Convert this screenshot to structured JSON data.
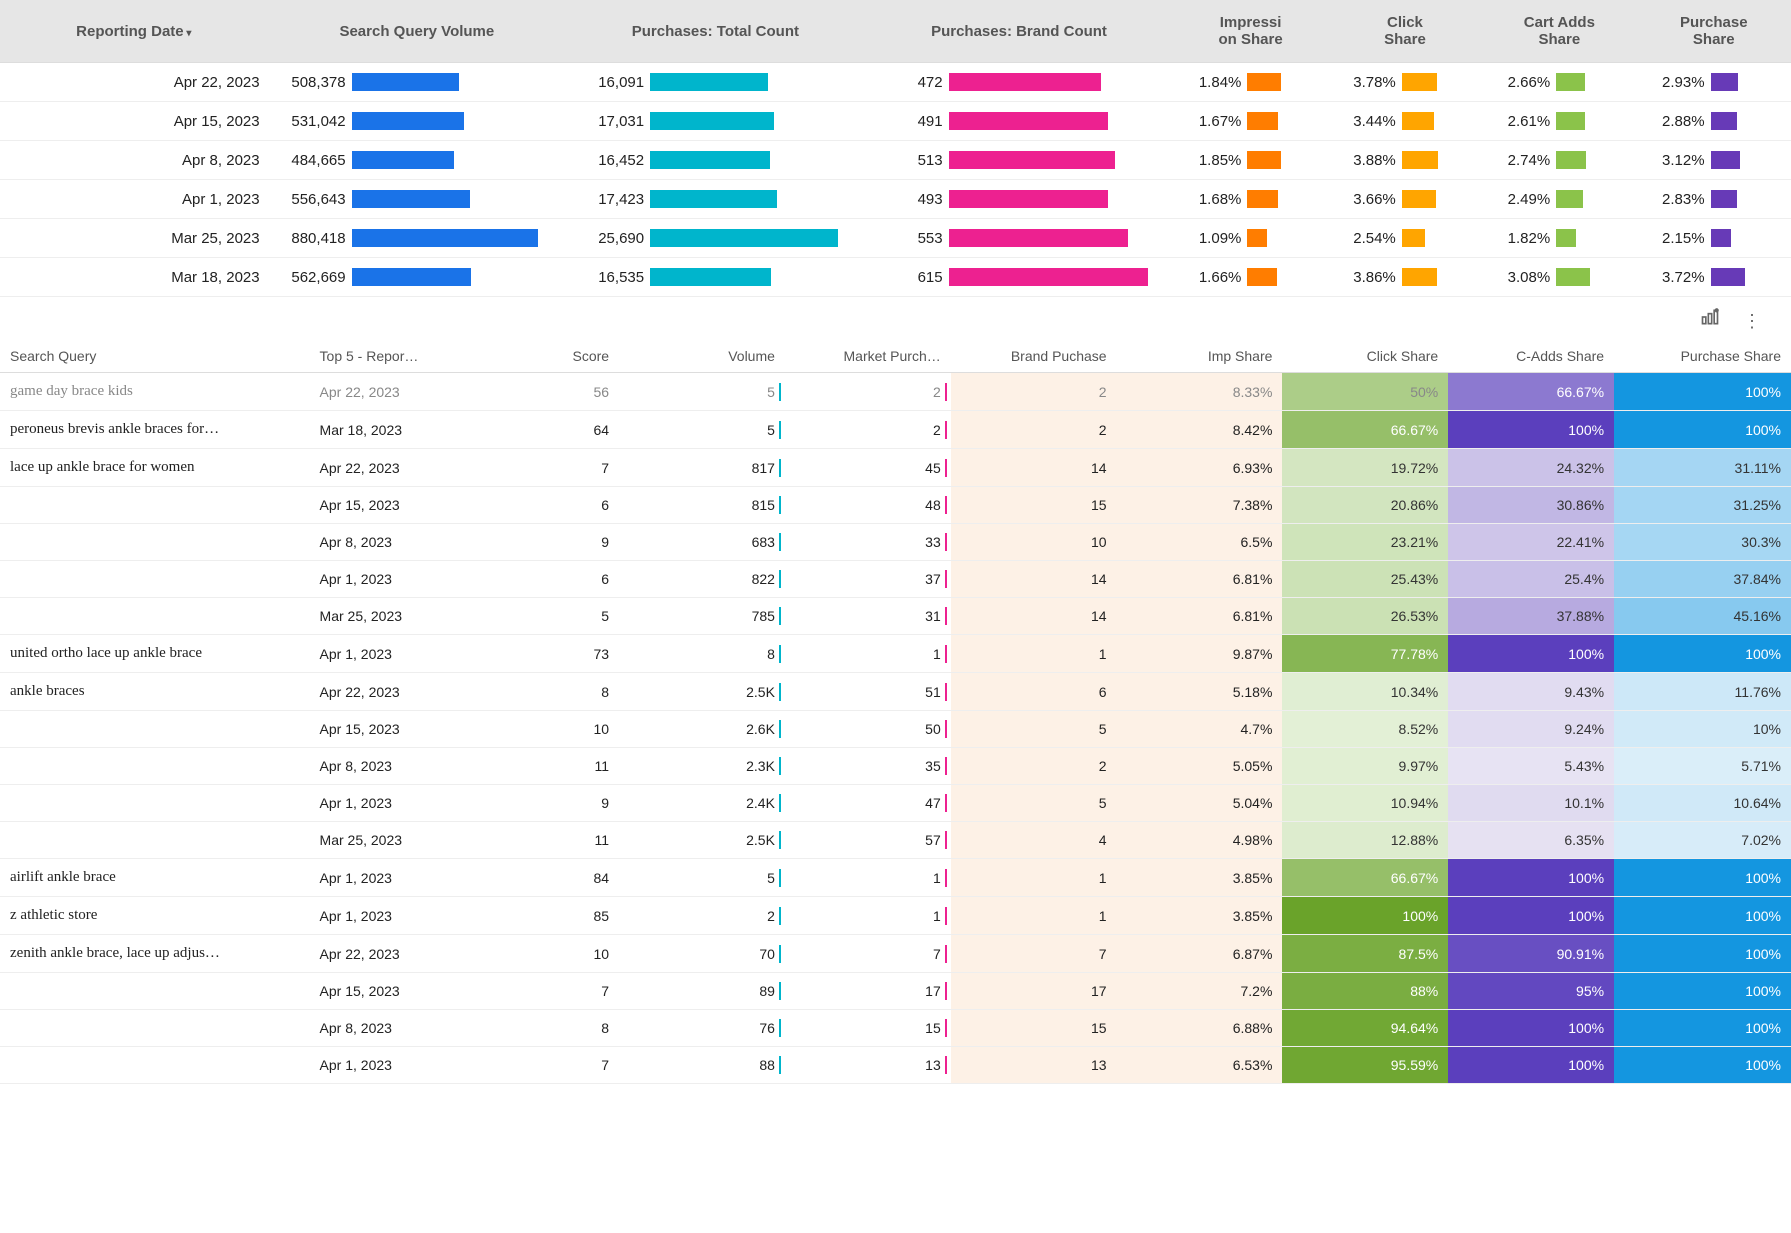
{
  "colors": {
    "sqv": "#1a73e8",
    "ptc": "#00b5cc",
    "pbc": "#ed2190",
    "imp": "#ff7d00",
    "click": "#ffa500",
    "cart": "#8bc34a",
    "purch": "#673ab7",
    "tick_vol": "#00b5cc",
    "tick_mp": "#ed2190",
    "brand_bg": "#fdf1e6",
    "header_bg": "#e6e6e6"
  },
  "topHeaders": {
    "date": "Reporting Date",
    "sqv": "Search Query Volume",
    "ptc": "Purchases: Total Count",
    "pbc": "Purchases: Brand Count",
    "imp": "Impressi\non Share",
    "click": "Click\nShare",
    "cart": "Cart Adds\nShare",
    "purch": "Purchase\nShare"
  },
  "topBar": {
    "sqv_max": 900000,
    "ptc_max": 26000,
    "pbc_max": 650,
    "imp_max": 3.0,
    "click_max": 6.0,
    "cart_max": 5.0,
    "purch_max": 6.0,
    "sqv_w": 190,
    "ptc_w": 190,
    "pbc_w": 210,
    "small_w": 55
  },
  "topRows": [
    {
      "date": "Apr 22, 2023",
      "sqv": 508378,
      "ptc": 16091,
      "pbc": 472,
      "imp": 1.84,
      "click": 3.78,
      "cart": 2.66,
      "purch": 2.93
    },
    {
      "date": "Apr 15, 2023",
      "sqv": 531042,
      "ptc": 17031,
      "pbc": 491,
      "imp": 1.67,
      "click": 3.44,
      "cart": 2.61,
      "purch": 2.88
    },
    {
      "date": "Apr 8, 2023",
      "sqv": 484665,
      "ptc": 16452,
      "pbc": 513,
      "imp": 1.85,
      "click": 3.88,
      "cart": 2.74,
      "purch": 3.12
    },
    {
      "date": "Apr 1, 2023",
      "sqv": 556643,
      "ptc": 17423,
      "pbc": 493,
      "imp": 1.68,
      "click": 3.66,
      "cart": 2.49,
      "purch": 2.83
    },
    {
      "date": "Mar 25, 2023",
      "sqv": 880418,
      "ptc": 25690,
      "pbc": 553,
      "imp": 1.09,
      "click": 2.54,
      "cart": 1.82,
      "purch": 2.15
    },
    {
      "date": "Mar 18, 2023",
      "sqv": 562669,
      "ptc": 16535,
      "pbc": 615,
      "imp": 1.66,
      "click": 3.86,
      "cart": 3.08,
      "purch": 3.72
    }
  ],
  "detailHeaders": {
    "query": "Search Query",
    "date": "Top 5 - Repor…",
    "score": "Score",
    "volume": "Volume",
    "mp": "Market Purch…",
    "bp": "Brand Puchase",
    "imp": "Imp Share",
    "click": "Click Share",
    "cadd": "C-Adds Share",
    "pshare": "Purchase Share"
  },
  "heatScales": {
    "click": {
      "min": 0,
      "max": 100,
      "lo": "#eef7e6",
      "hi": "#6aa32a"
    },
    "cadd": {
      "min": 0,
      "max": 100,
      "lo": "#efecf6",
      "hi": "#5b3fbd"
    },
    "pshare": {
      "min": 0,
      "max": 100,
      "lo": "#e6f3fb",
      "hi": "#1496e0"
    }
  },
  "detailRows": [
    {
      "cut": true,
      "query": "game day brace kids",
      "date": "Apr 22, 2023",
      "score": 56,
      "volume": "5",
      "mp": "2",
      "bp": 2,
      "imp": "8.33%",
      "click": 50,
      "cadd": 66.67,
      "pshare": 100
    },
    {
      "query": "peroneus brevis ankle braces for…",
      "date": "Mar 18, 2023",
      "score": 64,
      "volume": "5",
      "mp": "2",
      "bp": 2,
      "imp": "8.42%",
      "click": 66.67,
      "cadd": 100,
      "pshare": 100
    },
    {
      "query": "lace up ankle brace for women",
      "date": "Apr 22, 2023",
      "score": 7,
      "volume": "817",
      "mp": "45",
      "bp": 14,
      "imp": "6.93%",
      "click": 19.72,
      "cadd": 24.32,
      "pshare": 31.11
    },
    {
      "query": "",
      "date": "Apr 15, 2023",
      "score": 6,
      "volume": "815",
      "mp": "48",
      "bp": 15,
      "imp": "7.38%",
      "click": 20.86,
      "cadd": 30.86,
      "pshare": 31.25
    },
    {
      "query": "",
      "date": "Apr 8, 2023",
      "score": 9,
      "volume": "683",
      "mp": "33",
      "bp": 10,
      "imp": "6.5%",
      "click": 23.21,
      "cadd": 22.41,
      "pshare": 30.3
    },
    {
      "query": "",
      "date": "Apr 1, 2023",
      "score": 6,
      "volume": "822",
      "mp": "37",
      "bp": 14,
      "imp": "6.81%",
      "click": 25.43,
      "cadd": 25.4,
      "pshare": 37.84
    },
    {
      "query": "",
      "date": "Mar 25, 2023",
      "score": 5,
      "volume": "785",
      "mp": "31",
      "bp": 14,
      "imp": "6.81%",
      "click": 26.53,
      "cadd": 37.88,
      "pshare": 45.16
    },
    {
      "query": "united ortho lace up ankle brace",
      "date": "Apr 1, 2023",
      "score": 73,
      "volume": "8",
      "mp": "1",
      "bp": 1,
      "imp": "9.87%",
      "click": 77.78,
      "cadd": 100,
      "pshare": 100
    },
    {
      "query": "ankle braces",
      "date": "Apr 22, 2023",
      "score": 8,
      "volume": "2.5K",
      "mp": "51",
      "bp": 6,
      "imp": "5.18%",
      "click": 10.34,
      "cadd": 9.43,
      "pshare": 11.76
    },
    {
      "query": "",
      "date": "Apr 15, 2023",
      "score": 10,
      "volume": "2.6K",
      "mp": "50",
      "bp": 5,
      "imp": "4.7%",
      "click": 8.52,
      "cadd": 9.24,
      "pshare": 10
    },
    {
      "query": "",
      "date": "Apr 8, 2023",
      "score": 11,
      "volume": "2.3K",
      "mp": "35",
      "bp": 2,
      "imp": "5.05%",
      "click": 9.97,
      "cadd": 5.43,
      "pshare": 5.71
    },
    {
      "query": "",
      "date": "Apr 1, 2023",
      "score": 9,
      "volume": "2.4K",
      "mp": "47",
      "bp": 5,
      "imp": "5.04%",
      "click": 10.94,
      "cadd": 10.1,
      "pshare": 10.64
    },
    {
      "query": "",
      "date": "Mar 25, 2023",
      "score": 11,
      "volume": "2.5K",
      "mp": "57",
      "bp": 4,
      "imp": "4.98%",
      "click": 12.88,
      "cadd": 6.35,
      "pshare": 7.02
    },
    {
      "query": "airlift ankle brace",
      "date": "Apr 1, 2023",
      "score": 84,
      "volume": "5",
      "mp": "1",
      "bp": 1,
      "imp": "3.85%",
      "click": 66.67,
      "cadd": 100,
      "pshare": 100
    },
    {
      "query": "z athletic store",
      "date": "Apr 1, 2023",
      "score": 85,
      "volume": "2",
      "mp": "1",
      "bp": 1,
      "imp": "3.85%",
      "click": 100,
      "cadd": 100,
      "pshare": 100
    },
    {
      "query": "zenith ankle brace, lace up adjus…",
      "date": "Apr 22, 2023",
      "score": 10,
      "volume": "70",
      "mp": "7",
      "bp": 7,
      "imp": "6.87%",
      "click": 87.5,
      "cadd": 90.91,
      "pshare": 100
    },
    {
      "query": "",
      "date": "Apr 15, 2023",
      "score": 7,
      "volume": "89",
      "mp": "17",
      "bp": 17,
      "imp": "7.2%",
      "click": 88,
      "cadd": 95,
      "pshare": 100
    },
    {
      "query": "",
      "date": "Apr 8, 2023",
      "score": 8,
      "volume": "76",
      "mp": "15",
      "bp": 15,
      "imp": "6.88%",
      "click": 94.64,
      "cadd": 100,
      "pshare": 100
    },
    {
      "query": "",
      "date": "Apr 1, 2023",
      "score": 7,
      "volume": "88",
      "mp": "13",
      "bp": 13,
      "imp": "6.53%",
      "click": 95.59,
      "cadd": 100,
      "pshare": 100
    }
  ]
}
